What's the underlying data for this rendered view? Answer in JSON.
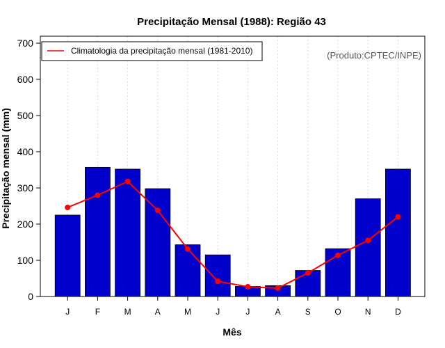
{
  "chart_data": {
    "type": "bar",
    "title": "Precipitação Mensal (1988): Região 43",
    "xlabel": "Mês",
    "ylabel": "Precipitação mensal (mm)",
    "ylim": [
      0,
      700
    ],
    "yticks": [
      0,
      100,
      200,
      300,
      400,
      500,
      600,
      700
    ],
    "categories": [
      "J",
      "F",
      "M",
      "A",
      "M",
      "J",
      "J",
      "A",
      "S",
      "O",
      "N",
      "D"
    ],
    "series": [
      {
        "name": "Precipitação mensal (1988)",
        "type": "bar",
        "color": "#0000cd",
        "values": [
          225,
          357,
          352,
          298,
          143,
          115,
          28,
          30,
          72,
          132,
          270,
          352
        ]
      },
      {
        "name": "Climatologia da precipitação mensal (1981-2010)",
        "type": "line",
        "color": "#ff0000",
        "values": [
          246,
          280,
          318,
          238,
          131,
          42,
          27,
          23,
          65,
          114,
          155,
          220
        ]
      }
    ],
    "legend": {
      "position": "top-left",
      "label": "Climatologia da precipitação mensal (1981-2010)"
    },
    "annotation": "(Produto:CPTEC/INPE)",
    "grid": "vertical dotted"
  }
}
